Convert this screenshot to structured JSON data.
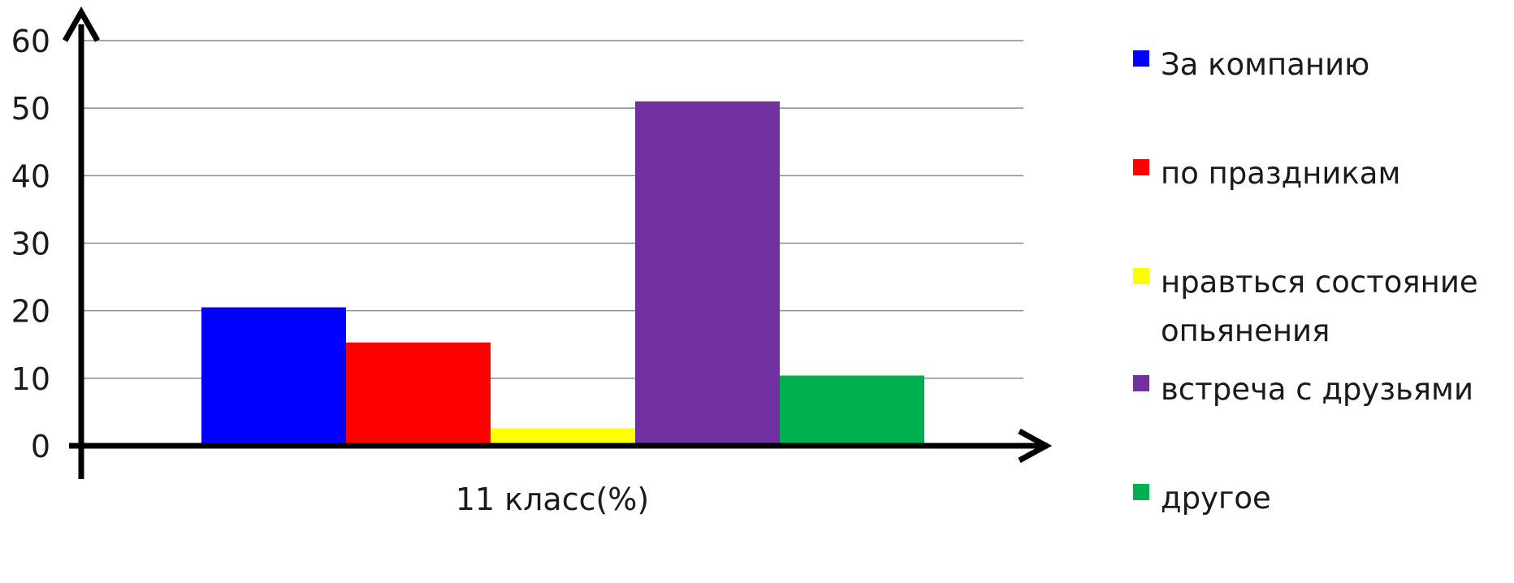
{
  "chart_data": {
    "type": "bar",
    "categories": [
      "11 класс(%)"
    ],
    "xlabel": "",
    "ylabel": "",
    "ylim": [
      0,
      60
    ],
    "yticks": [
      0,
      10,
      20,
      30,
      40,
      50,
      60
    ],
    "grid": true,
    "legend_position": "right",
    "series": [
      {
        "name": "За компанию",
        "values": [
          20.5
        ],
        "color": "#0000FF"
      },
      {
        "name": "по праздникам",
        "values": [
          15.3
        ],
        "color": "#FF0000"
      },
      {
        "name": "нравться состояние опьянения",
        "values": [
          2.6
        ],
        "color": "#FFFF00"
      },
      {
        "name": "встреча с друзьями",
        "values": [
          51
        ],
        "color": "#7030A0"
      },
      {
        "name": "другое",
        "values": [
          10.4
        ],
        "color": "#00B050"
      }
    ]
  }
}
